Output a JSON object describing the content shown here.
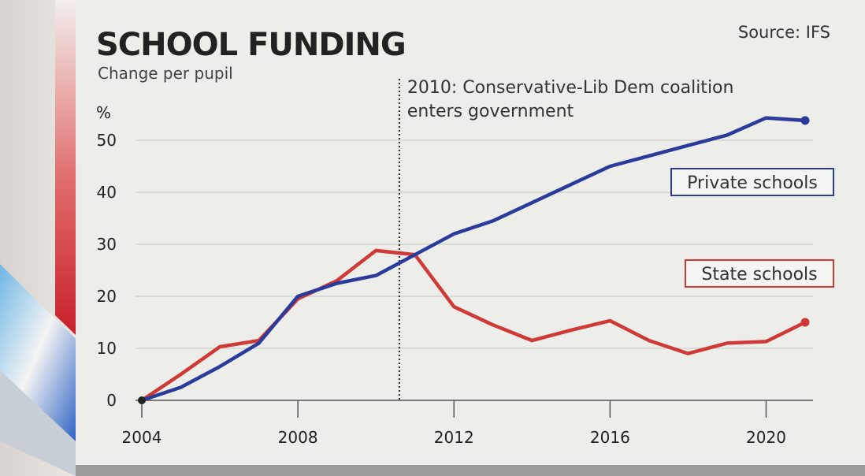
{
  "chart_data": {
    "type": "line",
    "title": "SCHOOL FUNDING",
    "subtitle": "Change per pupil",
    "source": "Source: IFS",
    "ylabel": "%",
    "xlabel": "",
    "xlim": [
      2004,
      2021
    ],
    "ylim": [
      0,
      55
    ],
    "x_ticks": [
      2004,
      2008,
      2012,
      2016,
      2020
    ],
    "y_ticks": [
      0,
      10,
      20,
      30,
      40,
      50
    ],
    "grid": true,
    "annotation": {
      "x": 2010.6,
      "line1": "2010: Conservative-Lib Dem coalition",
      "line2": "enters government"
    },
    "series": [
      {
        "name": "Private schools",
        "color": "#2b3b9c",
        "x": [
          2004,
          2005,
          2006,
          2007,
          2008,
          2009,
          2010,
          2011,
          2012,
          2013,
          2014,
          2015,
          2016,
          2017,
          2018,
          2019,
          2020,
          2021
        ],
        "values": [
          0,
          2.5,
          6.5,
          11,
          20,
          22.5,
          24,
          28,
          32,
          34.5,
          38,
          41.5,
          45,
          47,
          49,
          51,
          54.3,
          53.8
        ]
      },
      {
        "name": "State schools",
        "color": "#cf3a36",
        "x": [
          2004,
          2005,
          2006,
          2007,
          2008,
          2009,
          2010,
          2011,
          2012,
          2013,
          2014,
          2015,
          2016,
          2017,
          2018,
          2019,
          2020,
          2021
        ],
        "values": [
          0,
          5,
          10.3,
          11.5,
          19.5,
          23,
          28.8,
          28,
          18,
          14.5,
          11.5,
          13.5,
          15.3,
          11.5,
          9,
          11,
          11.3,
          15
        ]
      }
    ],
    "legend": {
      "placement": "right",
      "order": [
        "Private schools",
        "State schools"
      ]
    }
  }
}
